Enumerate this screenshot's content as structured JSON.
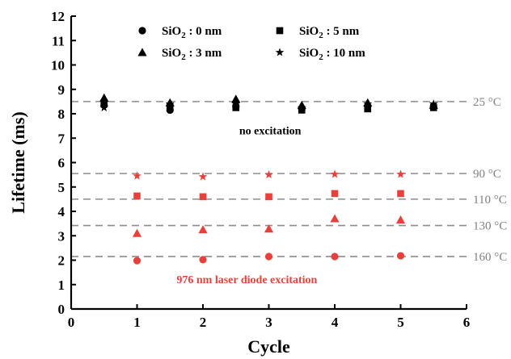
{
  "chart_data": {
    "type": "scatter",
    "xlabel": "Cycle",
    "ylabel": "Lifetime (ms)",
    "xlim": [
      0,
      6
    ],
    "ylim": [
      0,
      12
    ],
    "x_ticks": [
      0,
      1,
      2,
      3,
      4,
      5,
      6
    ],
    "y_ticks": [
      0,
      1,
      2,
      3,
      4,
      5,
      6,
      7,
      8,
      9,
      10,
      11,
      12
    ],
    "grid": false,
    "legend_placement": "top",
    "legend": [
      {
        "sub_prefix": "SiO",
        "subscript": "2",
        "suffix": " : 0 nm",
        "marker": "circle"
      },
      {
        "sub_prefix": "SiO",
        "subscript": "2",
        "suffix": " : 5 nm",
        "marker": "square"
      },
      {
        "sub_prefix": "SiO",
        "subscript": "2",
        "suffix": " : 3 nm",
        "marker": "triangle"
      },
      {
        "sub_prefix": "SiO",
        "subscript": "2",
        "suffix": " : 10 nm",
        "marker": "star"
      }
    ],
    "reference_lines": [
      {
        "y": 8.5,
        "label": "25 °C"
      },
      {
        "y": 5.55,
        "label": "90 °C"
      },
      {
        "y": 4.5,
        "label": "110 °C"
      },
      {
        "y": 3.42,
        "label": "130 °C"
      },
      {
        "y": 2.15,
        "label": "160 °C"
      }
    ],
    "annotations": [
      {
        "text": "no excitation",
        "x": 2.55,
        "y": 7.15,
        "color": "#000000"
      },
      {
        "text": "976 nm laser diode excitation",
        "x": 1.6,
        "y": 1.05,
        "color": "#e8413c"
      }
    ],
    "series": [
      {
        "marker": "circle",
        "color": "#000000",
        "x": [
          0.5,
          1.5,
          2.5,
          3.5,
          4.5,
          5.5
        ],
        "y": [
          8.35,
          8.15,
          8.3,
          8.2,
          8.3,
          8.3
        ]
      },
      {
        "marker": "square",
        "color": "#000000",
        "x": [
          0.5,
          1.5,
          2.5,
          3.5,
          4.5,
          5.5
        ],
        "y": [
          8.4,
          8.3,
          8.25,
          8.15,
          8.2,
          8.25
        ]
      },
      {
        "marker": "triangle",
        "color": "#000000",
        "x": [
          0.5,
          1.5,
          2.5,
          3.5,
          4.5,
          5.5
        ],
        "y": [
          8.65,
          8.45,
          8.6,
          8.35,
          8.45,
          8.35
        ]
      },
      {
        "marker": "star",
        "color": "#000000",
        "x": [
          0.5,
          1.5,
          2.5,
          3.5,
          4.5,
          5.5
        ],
        "y": [
          8.25,
          8.4,
          8.4,
          8.25,
          8.4,
          8.4
        ]
      },
      {
        "marker": "circle",
        "color": "#e8413c",
        "x": [
          1,
          2,
          3,
          4,
          5
        ],
        "y": [
          1.98,
          2.02,
          2.15,
          2.15,
          2.18
        ]
      },
      {
        "marker": "square",
        "color": "#e8413c",
        "x": [
          1,
          2,
          3,
          4,
          5
        ],
        "y": [
          4.63,
          4.6,
          4.6,
          4.73,
          4.73
        ]
      },
      {
        "marker": "triangle",
        "color": "#e8413c",
        "x": [
          1,
          2,
          3,
          4,
          5
        ],
        "y": [
          3.1,
          3.25,
          3.28,
          3.7,
          3.65
        ]
      },
      {
        "marker": "star",
        "color": "#e8413c",
        "x": [
          1,
          2,
          3,
          4,
          5
        ],
        "y": [
          5.45,
          5.42,
          5.5,
          5.52,
          5.52
        ]
      }
    ]
  }
}
